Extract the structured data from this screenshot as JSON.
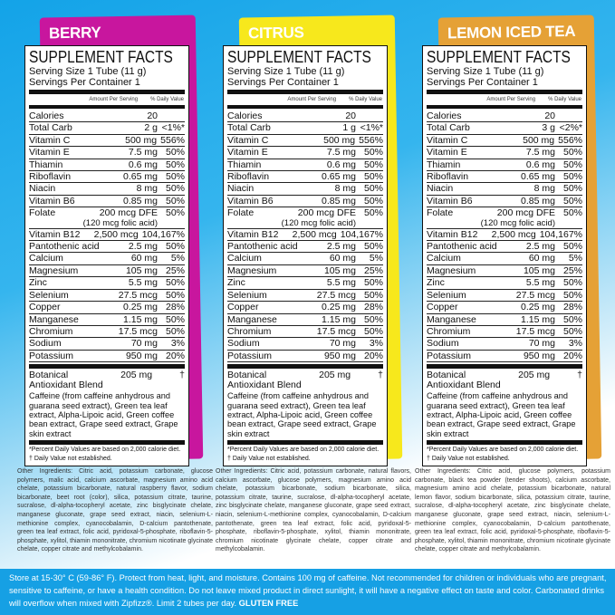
{
  "panels": [
    {
      "flavor": "BERRY",
      "color": "#c8169e",
      "carb_amount": "2 g",
      "carb_dv": "<1%*",
      "other": "Other Ingredients: Citric acid, potassium carbonate, glucose polymers, malic acid, calcium ascorbate, magnesium amino acid chelate, potassium bicarbonate, natural raspberry flavor, sodium bicarbonate, beet root (color), silica, potassium citrate, taurine, sucralose, dl-alpha-tocopheryl acetate, zinc bisglycinate chelate, manganese gluconate, grape seed extract, niacin, selenium-L-methionine complex, cyanocobalamin, D-calcium pantothenate, green tea leaf extract, folic acid, pyridoxal-5-phosphate, riboflavin-5-phosphate, xylitol, thiamin mononitrate, chromium nicotinate glycinate chelate, copper citrate and methylcobalamin."
    },
    {
      "flavor": "CITRUS",
      "color": "#f7e81c",
      "carb_amount": "1 g",
      "carb_dv": "<1%*",
      "other": "Other Ingredients: Citric acid, potassium carbonate, natural flavors, calcium ascorbate, glucose polymers, magnesium amino acid chelate, potassium bicarbonate, sodium bicarbonate, silica, potassium citrate, taurine, sucralose, dl-alpha-tocopheryl acetate, zinc bisglycinate chelate, manganese gluconate, grape seed extract, niacin, selenium-L-methionine complex, cyanocobalamin, D-calcium pantothenate, green tea leaf extract, folic acid, pyridoxal-5-phosphate, riboflavin-5-phosphate, xylitol, thiamin mononitrate, chromium nicotinate glycinate chelate, copper citrate and methylcobalamin."
    },
    {
      "flavor": "LEMON ICED TEA",
      "color": "#e5a136",
      "carb_amount": "3 g",
      "carb_dv": "<2%*",
      "other": "Other Ingredients: Citric acid, glucose polymers, potassium carbonate, black tea powder (tender shoots), calcium ascorbate, magnesium amino acid chelate, potassium bicarbonate, natural lemon flavor, sodium bicarbonate, silica, potassium citrate, taurine, sucralose, dl-alpha-tocopheryl acetate, zinc bisglycinate chelate, manganese gluconate, grape seed extract, niacin, selenium-L-methionine complex, cyanocobalamin, D-calcium pantothenate, green tea leaf extract, folic acid, pyridoxal-5-phosphate, riboflavin-5-phosphate, xylitol, thiamin mononitrate, chromium nicotinate glycinate chelate, copper citrate and methylcobalamin."
    }
  ],
  "facts": {
    "title": "SUPPLEMENT FACTS",
    "serving_size": "Serving Size 1 Tube  (11 g)",
    "servings": "Servings Per Container  1",
    "amount_header": "Amount Per Serving",
    "dv_header": "% Daily Value",
    "calories_label": "Calories",
    "calories_value": "20",
    "carb_label": "Total Carb",
    "rows": [
      {
        "name": "Vitamin C",
        "amount": "500 mg",
        "dv": "556%"
      },
      {
        "name": "Vitamin E",
        "amount": "7.5 mg",
        "dv": "50%"
      },
      {
        "name": "Thiamin",
        "amount": "0.6 mg",
        "dv": "50%"
      },
      {
        "name": "Riboflavin",
        "amount": "0.65 mg",
        "dv": "50%"
      },
      {
        "name": "Niacin",
        "amount": "8 mg",
        "dv": "50%"
      },
      {
        "name": "Vitamin B6",
        "amount": "0.85 mg",
        "dv": "50%"
      },
      {
        "name": "Folate",
        "amount": "200 mcg DFE",
        "amount2": "(120 mcg folic acid)",
        "dv": "50%"
      },
      {
        "name": "Vitamin B12",
        "amount": "2,500 mcg",
        "dv": "104,167%"
      },
      {
        "name": "Pantothenic acid",
        "amount": "2.5 mg",
        "dv": "50%"
      },
      {
        "name": "Calcium",
        "amount": "60 mg",
        "dv": "5%"
      },
      {
        "name": "Magnesium",
        "amount": "105 mg",
        "dv": "25%"
      },
      {
        "name": "Zinc",
        "amount": "5.5 mg",
        "dv": "50%"
      },
      {
        "name": "Selenium",
        "amount": "27.5 mcg",
        "dv": "50%"
      },
      {
        "name": "Copper",
        "amount": "0.25 mg",
        "dv": "28%"
      },
      {
        "name": "Manganese",
        "amount": "1.15 mg",
        "dv": "50%"
      },
      {
        "name": "Chromium",
        "amount": "17.5 mcg",
        "dv": "50%"
      },
      {
        "name": "Sodium",
        "amount": "70 mg",
        "dv": "3%"
      },
      {
        "name": "Potassium",
        "amount": "950 mg",
        "dv": "20%"
      }
    ],
    "blend_label": "Botanical",
    "blend_label2": " Antioxidant Blend",
    "blend_amount": "205 mg",
    "blend_dv": "†",
    "blend_contents": "Caffeine (from caffeine anhydrous and guarana seed extract), Green tea leaf extract, Alpha-Lipoic acid, Green coffee bean extract, Grape seed extract, Grape skin extract",
    "footnote1": "*Percent Daily Values are based on 2,000 calorie diet.",
    "footnote2": "† Daily Value not established."
  },
  "storage": {
    "text": "Store at 15-30° C (59-86° F). Protect from heat, light, and moisture. Contains 100 mg of caffeine. Not recommended for children or individuals who are pregnant, sensitive to caffeine, or have a health condition. Do not leave mixed product in direct sunlight, it will have a negative effect on taste and color. Carbonated drinks will overflow when mixed with Zipfizz®. Limit 2 tubes per day.",
    "gluten_free": "GLUTEN FREE"
  }
}
